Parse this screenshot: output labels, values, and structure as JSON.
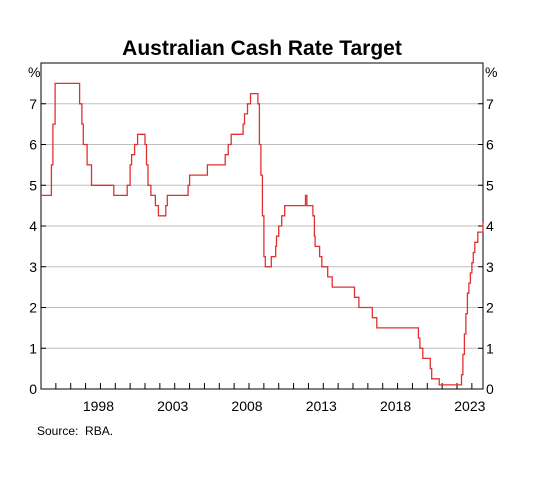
{
  "chart_data": {
    "type": "line",
    "title": "Australian Cash Rate Target",
    "ylabel_left": "%",
    "ylabel_right": "%",
    "source_label": "Source:",
    "source_value": "RBA.",
    "ylim": [
      0,
      8
    ],
    "yticks": [
      0,
      1,
      2,
      3,
      4,
      5,
      6,
      7
    ],
    "xlim": [
      1994.0,
      2023.75
    ],
    "xticks": [
      1998,
      2003,
      2008,
      2013,
      2018,
      2023
    ],
    "xtick_labels": [
      "1998",
      "2003",
      "2008",
      "2013",
      "2018",
      "2023"
    ],
    "grid": true,
    "line_color": "#e03131",
    "series": [
      {
        "x": [
          1994.0,
          1994.6,
          1994.7,
          1994.8,
          1994.95,
          1996.5,
          1996.6,
          1996.75,
          1996.85,
          1997.1,
          1997.4,
          1998.9,
          1999.8,
          2000.0,
          2000.1,
          2000.3,
          2000.5,
          2001.0,
          2001.1,
          2001.2,
          2001.4,
          2001.7,
          2001.9,
          2002.4,
          2002.5,
          2003.9,
          2004.0,
          2005.2,
          2006.4,
          2006.6,
          2006.8,
          2007.6,
          2007.7,
          2007.9,
          2008.1,
          2008.6,
          2008.7,
          2008.8,
          2008.9,
          2009.0,
          2009.1,
          2009.5,
          2009.8,
          2009.85,
          2010.0,
          2010.2,
          2010.4,
          2011.8,
          2011.9,
          2012.3,
          2012.4,
          2012.45,
          2012.75,
          2012.9,
          2013.3,
          2013.6,
          2015.1,
          2015.4,
          2016.3,
          2016.6,
          2019.4,
          2019.5,
          2019.7,
          2020.2,
          2020.3,
          2020.8,
          2022.3,
          2022.4,
          2022.5,
          2022.6,
          2022.7,
          2022.8,
          2022.9,
          2023.0,
          2023.1,
          2023.2,
          2023.4,
          2023.75
        ],
        "y": [
          4.75,
          4.75,
          5.5,
          6.5,
          7.5,
          7.5,
          7.0,
          6.5,
          6.0,
          5.5,
          5.0,
          4.75,
          5.0,
          5.5,
          5.75,
          6.0,
          6.25,
          6.0,
          5.5,
          5.0,
          4.75,
          4.5,
          4.25,
          4.5,
          4.75,
          5.0,
          5.25,
          5.5,
          5.75,
          6.0,
          6.25,
          6.5,
          6.75,
          7.0,
          7.25,
          7.0,
          6.0,
          5.25,
          4.25,
          3.25,
          3.0,
          3.25,
          3.5,
          3.75,
          4.0,
          4.25,
          4.5,
          4.75,
          4.5,
          4.25,
          3.75,
          3.5,
          3.25,
          3.0,
          2.75,
          2.5,
          2.25,
          2.0,
          1.75,
          1.5,
          1.25,
          1.0,
          0.75,
          0.5,
          0.25,
          0.1,
          0.35,
          0.85,
          1.35,
          1.85,
          2.35,
          2.6,
          2.85,
          3.1,
          3.35,
          3.6,
          3.85,
          4.1
        ]
      }
    ]
  }
}
